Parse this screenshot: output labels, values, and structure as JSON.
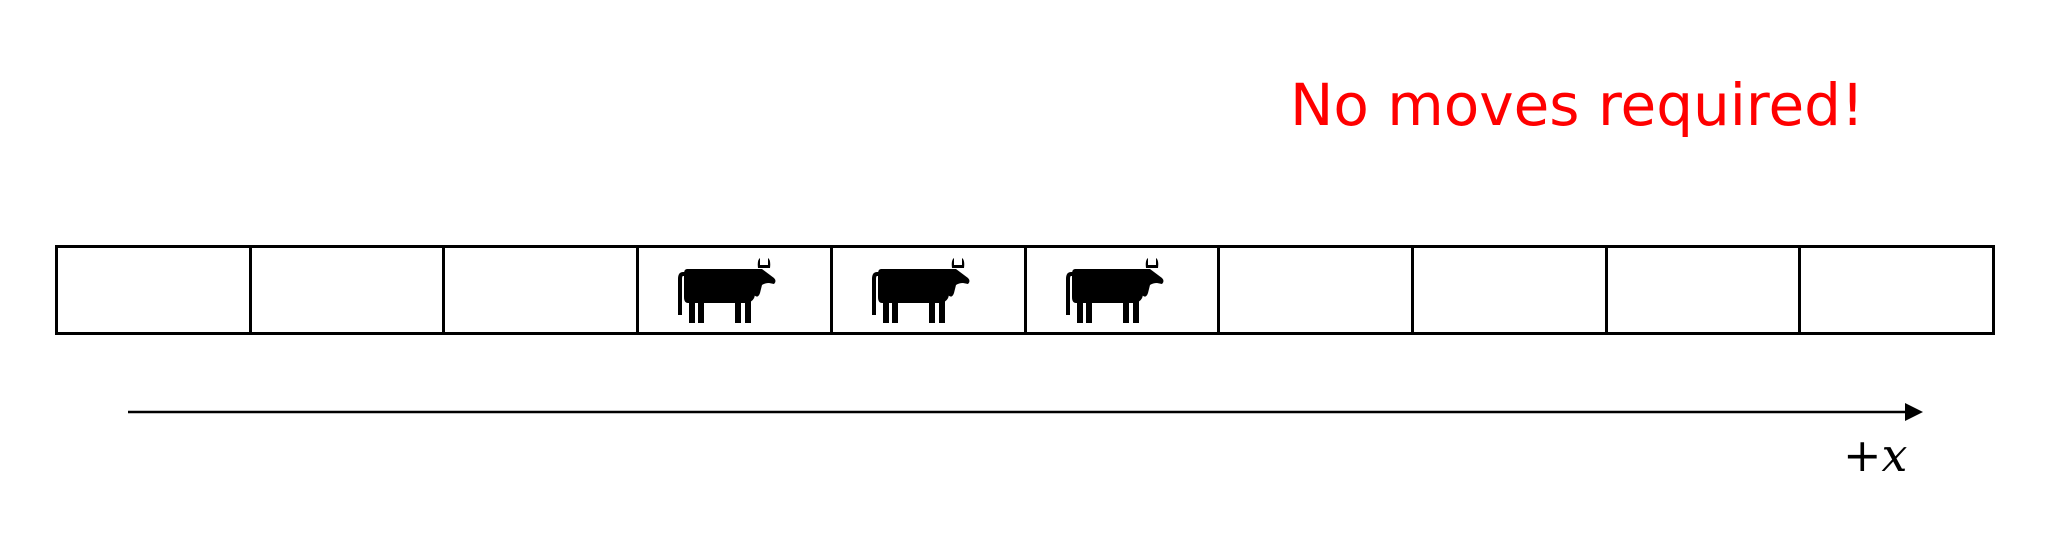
{
  "message": {
    "text": "No moves required!",
    "color": "#ff0000"
  },
  "grid": {
    "cells": [
      {
        "occupied": false
      },
      {
        "occupied": false
      },
      {
        "occupied": false
      },
      {
        "occupied": true,
        "icon": "cow-icon"
      },
      {
        "occupied": true,
        "icon": "cow-icon"
      },
      {
        "occupied": true,
        "icon": "cow-icon"
      },
      {
        "occupied": false
      },
      {
        "occupied": false
      },
      {
        "occupied": false
      },
      {
        "occupied": false
      }
    ]
  },
  "axis": {
    "label": "+x",
    "direction": "right"
  }
}
